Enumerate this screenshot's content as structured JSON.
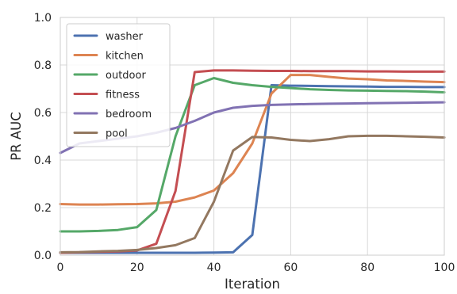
{
  "chart_data": {
    "type": "line",
    "title": "",
    "xlabel": "Iteration",
    "ylabel": "PR AUC",
    "xlim": [
      0,
      100
    ],
    "ylim": [
      0,
      1.0
    ],
    "xticks": [
      0,
      20,
      40,
      60,
      80,
      100
    ],
    "yticks": [
      "0.0",
      "0.2",
      "0.4",
      "0.6",
      "0.8",
      "1.0"
    ],
    "grid": true,
    "legend_position": "top-left",
    "x": [
      0,
      5,
      10,
      15,
      20,
      25,
      30,
      35,
      40,
      45,
      50,
      55,
      60,
      65,
      70,
      75,
      80,
      85,
      90,
      95,
      100
    ],
    "series": [
      {
        "name": "washer",
        "color": "#4c72b0",
        "values": [
          0.01,
          0.01,
          0.01,
          0.01,
          0.01,
          0.01,
          0.01,
          0.01,
          0.011,
          0.012,
          0.085,
          0.715,
          0.713,
          0.712,
          0.711,
          0.71,
          0.709,
          0.708,
          0.708,
          0.707,
          0.707
        ]
      },
      {
        "name": "kitchen",
        "color": "#dd8452",
        "values": [
          0.215,
          0.213,
          0.213,
          0.214,
          0.215,
          0.218,
          0.225,
          0.243,
          0.272,
          0.345,
          0.47,
          0.68,
          0.758,
          0.758,
          0.75,
          0.743,
          0.74,
          0.735,
          0.733,
          0.73,
          0.728
        ]
      },
      {
        "name": "outdoor",
        "color": "#55a868",
        "values": [
          0.1,
          0.1,
          0.102,
          0.106,
          0.118,
          0.19,
          0.5,
          0.715,
          0.745,
          0.725,
          0.715,
          0.708,
          0.703,
          0.698,
          0.695,
          0.693,
          0.692,
          0.691,
          0.69,
          0.688,
          0.685
        ]
      },
      {
        "name": "fitness",
        "color": "#c44e52",
        "values": [
          0.01,
          0.012,
          0.014,
          0.016,
          0.02,
          0.048,
          0.27,
          0.77,
          0.777,
          0.777,
          0.776,
          0.775,
          0.775,
          0.774,
          0.774,
          0.774,
          0.773,
          0.773,
          0.772,
          0.772,
          0.772
        ]
      },
      {
        "name": "bedroom",
        "color": "#8172b3",
        "values": [
          0.43,
          0.47,
          0.48,
          0.49,
          0.5,
          0.515,
          0.535,
          0.565,
          0.6,
          0.62,
          0.628,
          0.632,
          0.634,
          0.636,
          0.637,
          0.638,
          0.639,
          0.64,
          0.641,
          0.642,
          0.643
        ]
      },
      {
        "name": "pool",
        "color": "#937860",
        "values": [
          0.012,
          0.013,
          0.016,
          0.018,
          0.022,
          0.03,
          0.042,
          0.072,
          0.225,
          0.44,
          0.497,
          0.495,
          0.485,
          0.48,
          0.488,
          0.5,
          0.502,
          0.502,
          0.5,
          0.498,
          0.495
        ]
      }
    ]
  },
  "colors": {
    "background": "#ffffff",
    "grid": "#d8d8d8",
    "axis_spine": "#cccccc",
    "text": "#262626"
  }
}
